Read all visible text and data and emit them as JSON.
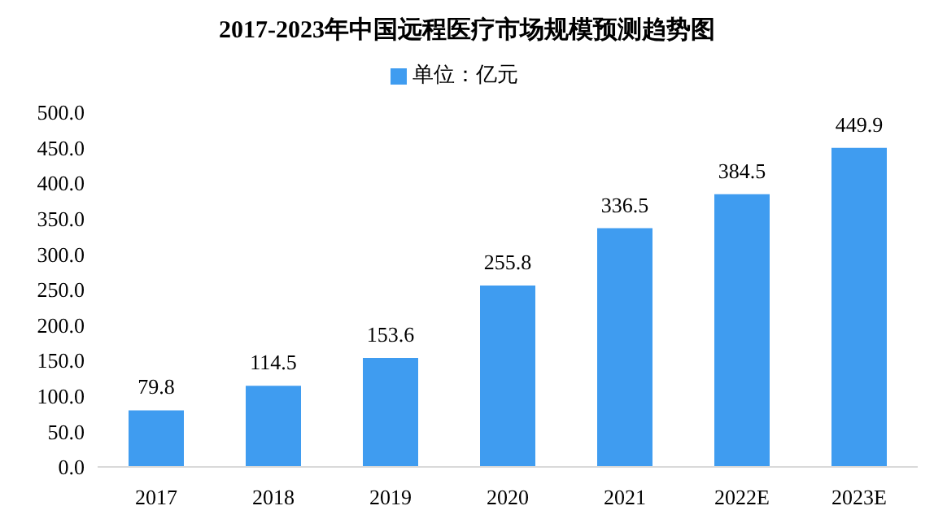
{
  "chart_data": {
    "type": "bar",
    "title": "2017-2023年中国远程医疗市场规模预测趋势图",
    "categories": [
      "2017",
      "2018",
      "2019",
      "2020",
      "2021",
      "2022E",
      "2023E"
    ],
    "series": [
      {
        "name": "单位：亿元",
        "color": "#3f9cf0",
        "values": [
          79.8,
          114.5,
          153.6,
          255.8,
          336.5,
          384.5,
          449.9
        ]
      }
    ],
    "ylim": [
      0,
      500
    ],
    "yticks": [
      {
        "value": 0,
        "label": "0.0"
      },
      {
        "value": 50,
        "label": "50.0"
      },
      {
        "value": 100,
        "label": "100.0"
      },
      {
        "value": 150,
        "label": "150.0"
      },
      {
        "value": 200,
        "label": "200.0"
      },
      {
        "value": 250,
        "label": "250.0"
      },
      {
        "value": 300,
        "label": "300.0"
      },
      {
        "value": 350,
        "label": "350.0"
      },
      {
        "value": 400,
        "label": "400.0"
      },
      {
        "value": 450,
        "label": "450.0"
      },
      {
        "value": 500,
        "label": "500.0"
      }
    ],
    "grid": false,
    "legend": "top",
    "data_labels": true
  }
}
